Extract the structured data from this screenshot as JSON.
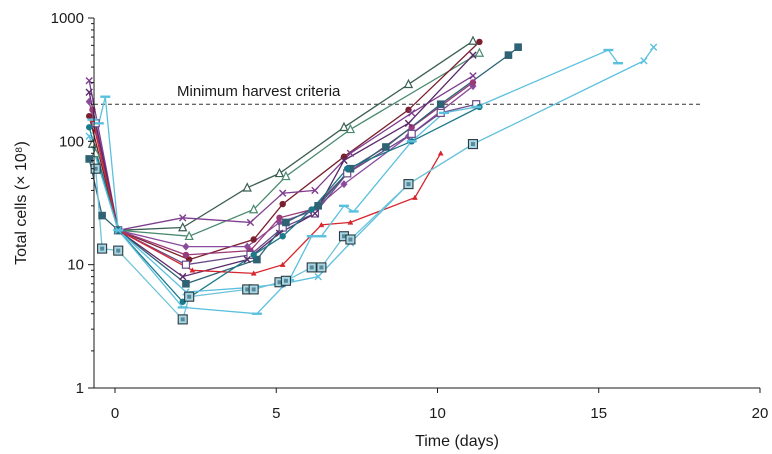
{
  "chart_data": {
    "type": "line",
    "title": "",
    "xlabel": "Time (days)",
    "ylabel": "Total cells (× 10⁸)",
    "xlim": [
      -0.8,
      20
    ],
    "ylim": [
      1,
      1000
    ],
    "y_scale": "log",
    "x_ticks": [
      0,
      5,
      10,
      15,
      20
    ],
    "x_tick_labels": [
      "0",
      "5",
      "10",
      "15",
      "20"
    ],
    "y_ticks": [
      1,
      10,
      100,
      1000
    ],
    "y_tick_labels": [
      "1",
      "10",
      "100",
      "1000"
    ],
    "grid": false,
    "legend": "none",
    "reference_line": {
      "label": "Minimum harvest criteria",
      "y": 200,
      "x_range": [
        -0.8,
        18.2
      ]
    },
    "series": [
      {
        "color": "#3b5f52",
        "marker": "triangle",
        "x": [
          -0.7,
          0.1,
          2.1,
          4.1,
          5.1,
          7.1,
          9.1,
          11.1
        ],
        "y": [
          95,
          19,
          20,
          42,
          55,
          130,
          290,
          650
        ]
      },
      {
        "color": "#4a8a6e",
        "marker": "triangle",
        "x": [
          -0.6,
          0.1,
          2.3,
          4.3,
          5.3,
          7.3,
          11.3
        ],
        "y": [
          80,
          19,
          17,
          28,
          52,
          125,
          520
        ]
      },
      {
        "color": "#7a1f2e",
        "marker": "circle",
        "x": [
          -0.8,
          0.1,
          2.3,
          4.3,
          5.2,
          7.1,
          9.1,
          11.3
        ],
        "y": [
          160,
          19,
          11,
          16,
          31,
          75,
          180,
          640
        ]
      },
      {
        "color": "#7e3d8f",
        "marker": "x",
        "x": [
          -0.8,
          0.1,
          2.1,
          4.2,
          5.2,
          6.2,
          7.3,
          9.2,
          11.1
        ],
        "y": [
          310,
          19,
          24,
          22,
          38,
          40,
          80,
          170,
          340
        ]
      },
      {
        "color": "#8b4a9c",
        "marker": "diamond",
        "x": [
          -0.8,
          0.1,
          2.2,
          4.1,
          5.1,
          6.1,
          7.1,
          9.1,
          11.1
        ],
        "y": [
          210,
          19,
          14,
          14,
          22,
          27,
          45,
          110,
          280
        ]
      },
      {
        "color": "#9b3a7a",
        "marker": "circle",
        "x": [
          -0.7,
          0.1,
          2.2,
          4.2,
          5.1,
          6.1,
          7.2,
          9.2,
          11.1
        ],
        "y": [
          180,
          19,
          12,
          13,
          24,
          28,
          55,
          130,
          300
        ]
      },
      {
        "color": "#6a4a8a",
        "marker": "square-open",
        "x": [
          -0.6,
          0.1,
          2.2,
          4.2,
          5.2,
          6.2,
          7.2,
          9.2,
          10.1,
          11.2
        ],
        "y": [
          140,
          19,
          10,
          12,
          20,
          26,
          55,
          115,
          170,
          200
        ]
      },
      {
        "color": "#5a2a6a",
        "marker": "x",
        "x": [
          -0.8,
          0.1,
          2.1,
          4.1,
          5.1,
          6.2,
          7.1,
          9.1,
          11.1
        ],
        "y": [
          250,
          19,
          8,
          11,
          18,
          26,
          70,
          140,
          500
        ]
      },
      {
        "color": "#2f6275",
        "marker": "square",
        "x": [
          -0.8,
          -0.4,
          0.1,
          2.2,
          4.4,
          5.3,
          6.3,
          7.3,
          8.4,
          10.1,
          12.2,
          12.5
        ],
        "y": [
          72,
          25,
          19,
          7,
          11,
          22,
          30,
          60,
          90,
          200,
          500,
          580
        ]
      },
      {
        "color": "#d7262e",
        "marker": "triangle-small",
        "x": [
          -0.7,
          0.1,
          2.4,
          4.3,
          5.2,
          6.4,
          7.3,
          9.3,
          10.1
        ],
        "y": [
          150,
          19,
          9,
          8.5,
          10,
          21,
          22,
          35,
          80
        ]
      },
      {
        "color": "#1b7a8a",
        "marker": "circle",
        "x": [
          -0.8,
          0.1,
          2.1,
          4.3,
          5.2,
          6.1,
          7.2,
          9.2,
          11.3
        ],
        "y": [
          130,
          19,
          5,
          12,
          17,
          28,
          60,
          100,
          190
        ]
      },
      {
        "color": "#5bc0de",
        "marker": "tick",
        "x": [
          -0.7,
          -0.5,
          -0.3,
          0.1,
          2.1,
          4.4,
          5.4,
          6.1,
          6.4,
          7.1,
          7.4,
          9.2,
          10.2,
          11.2,
          15.3,
          15.6
        ],
        "y": [
          150,
          140,
          230,
          19,
          4.5,
          4,
          7.5,
          17,
          17,
          30,
          27,
          100,
          170,
          190,
          550,
          430
        ]
      },
      {
        "color": "#5bc0de",
        "marker": "x",
        "x": [
          -0.8,
          0.1,
          2.2,
          4.1,
          5.2,
          6.3,
          7.3,
          9.1,
          11.1,
          16.4,
          16.7
        ],
        "y": [
          110,
          19,
          6,
          6.5,
          7,
          8,
          15,
          45,
          95,
          450,
          580
        ]
      },
      {
        "color": "#6fc3d9",
        "marker": "square-boxed",
        "x": [
          -0.6,
          -0.4,
          0.1,
          2.1,
          2.3,
          4.1,
          4.3,
          5.1,
          5.3,
          6.1,
          6.4,
          7.1,
          7.3,
          9.1,
          11.1
        ],
        "y": [
          60,
          13.5,
          13,
          3.6,
          5.5,
          6.3,
          6.3,
          7.2,
          7.4,
          9.5,
          9.5,
          17,
          16,
          45,
          95
        ]
      }
    ]
  }
}
